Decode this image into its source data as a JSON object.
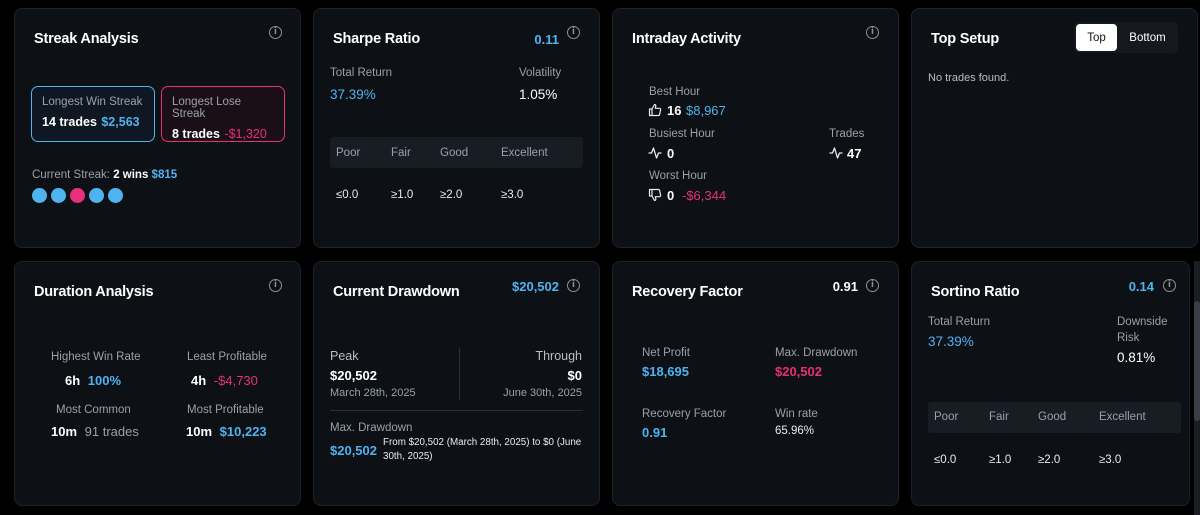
{
  "streak": {
    "title": "Streak Analysis",
    "win_label": "Longest Win Streak",
    "win_trades": "14 trades",
    "win_amount": "$2,563",
    "lose_label": "Longest Lose Streak",
    "lose_trades": "8 trades",
    "lose_amount": "-$1,320",
    "current_label": "Current Streak:",
    "current_wins": "2 wins",
    "current_amount": "$815",
    "dots": [
      "win",
      "win",
      "loss",
      "win",
      "win"
    ]
  },
  "sharpe": {
    "title": "Sharpe Ratio",
    "value": "0.11",
    "total_return_label": "Total Return",
    "total_return": "37.39%",
    "volatility_label": "Volatility",
    "volatility": "1.05%",
    "scale_headers": [
      "Poor",
      "Fair",
      "Good",
      "Excellent"
    ],
    "scale_values": [
      "≤0.0",
      "≥1.0",
      "≥2.0",
      "≥3.0"
    ]
  },
  "intraday": {
    "title": "Intraday Activity",
    "best_label": "Best Hour",
    "best_hour": "16",
    "best_amount": "$8,967",
    "busiest_label": "Busiest Hour",
    "busiest_hour": "0",
    "trades_label": "Trades",
    "trades": "47",
    "worst_label": "Worst Hour",
    "worst_hour": "0",
    "worst_amount": "-$6,344"
  },
  "top_setup": {
    "title": "Top Setup",
    "tab_top": "Top",
    "tab_bottom": "Bottom",
    "empty": "No trades found."
  },
  "duration": {
    "title": "Duration Analysis",
    "highest_label": "Highest Win Rate",
    "highest_h": "6h",
    "highest_v": "100%",
    "least_label": "Least Profitable",
    "least_h": "4h",
    "least_v": "-$4,730",
    "common_label": "Most Common",
    "common_h": "10m",
    "common_v": "91 trades",
    "most_label": "Most Profitable",
    "most_h": "10m",
    "most_v": "$10,223"
  },
  "drawdown": {
    "title": "Current Drawdown",
    "value": "$20,502",
    "peak_label": "Peak",
    "peak_value": "$20,502",
    "peak_date": "March 28th, 2025",
    "trough_label": "Through",
    "trough_value": "$0",
    "trough_date": "June 30th, 2025",
    "max_label": "Max. Drawdown",
    "max_value": "$20,502",
    "max_desc_1": "From $20,502 (March 28th, 2025) to $0 (June",
    "max_desc_2": "30th, 2025)"
  },
  "recovery": {
    "title": "Recovery Factor",
    "value": "0.91",
    "net_label": "Net Profit",
    "net_value": "$18,695",
    "maxdd_label": "Max. Drawdown",
    "maxdd_value": "$20,502",
    "rf_label": "Recovery Factor",
    "rf_value": "0.91",
    "winrate_label": "Win rate",
    "winrate_value": "65.96%"
  },
  "sortino": {
    "title": "Sortino Ratio",
    "value": "0.14",
    "total_return_label": "Total Return",
    "total_return": "37.39%",
    "downside_label_1": "Downside",
    "downside_label_2": "Risk",
    "downside": "0.81%",
    "scale_headers": [
      "Poor",
      "Fair",
      "Good",
      "Excellent"
    ],
    "scale_values": [
      "≤0.0",
      "≥1.0",
      "≥2.0",
      "≥3.0"
    ]
  },
  "colors": {
    "accent_blue": "#4fb3f0",
    "accent_red": "#e8307a",
    "card_bg": "#0d1015"
  }
}
